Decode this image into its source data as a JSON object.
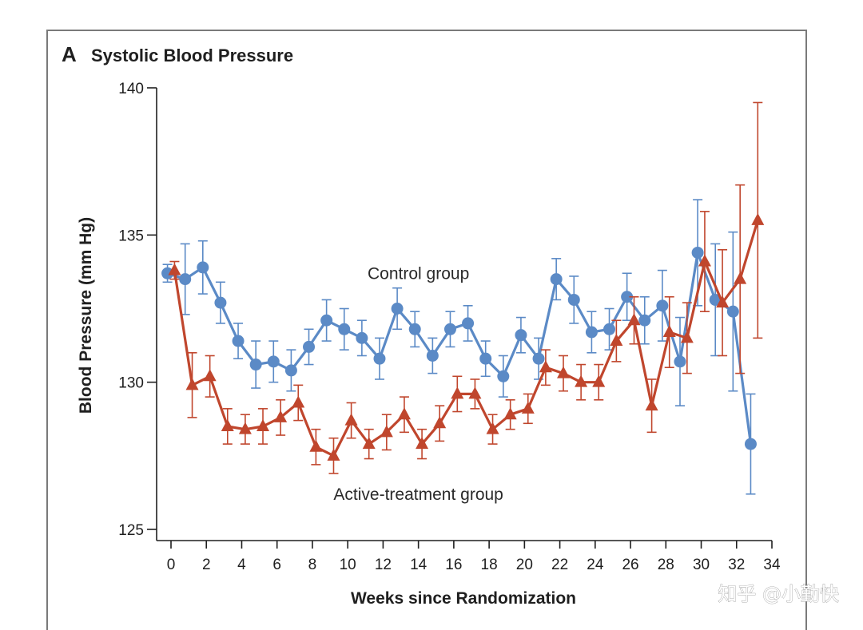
{
  "panel_letter": "A",
  "watermark": "知乎 @小勤快",
  "colors": {
    "control": "#5b8ac6",
    "active": "#c0462d",
    "axis": "#1f1f1f",
    "frame": "#7a7a7a"
  },
  "chart_data": {
    "type": "line",
    "title": "Systolic Blood Pressure",
    "xlabel": "Weeks since Randomization",
    "ylabel": "Blood Pressure (mm Hg)",
    "xlim": [
      0,
      34
    ],
    "ylim": [
      125,
      140
    ],
    "xticks": [
      0,
      2,
      4,
      6,
      8,
      10,
      12,
      14,
      16,
      18,
      20,
      22,
      24,
      26,
      28,
      30,
      32,
      34
    ],
    "yticks": [
      125,
      130,
      135,
      140
    ],
    "grid": false,
    "legend": "none",
    "series": [
      {
        "name": "Control group",
        "key": "control",
        "marker": "circle",
        "x": [
          -0.2,
          0.8,
          1.8,
          2.8,
          3.8,
          4.8,
          5.8,
          6.8,
          7.8,
          8.8,
          9.8,
          10.8,
          11.8,
          12.8,
          13.8,
          14.8,
          15.8,
          16.8,
          17.8,
          18.8,
          19.8,
          20.8,
          21.8,
          22.8,
          23.8,
          24.8,
          25.8,
          26.8,
          27.8,
          28.8,
          29.8,
          30.8,
          31.8,
          32.8
        ],
        "y": [
          133.7,
          133.5,
          133.9,
          132.7,
          131.4,
          130.6,
          130.7,
          130.4,
          131.2,
          132.1,
          131.8,
          131.5,
          130.8,
          132.5,
          131.8,
          130.9,
          131.8,
          132.0,
          130.8,
          130.2,
          131.6,
          130.8,
          133.5,
          132.8,
          131.7,
          131.8,
          132.9,
          132.1,
          132.6,
          130.7,
          134.4,
          132.8,
          132.4,
          127.9
        ],
        "error": [
          0.3,
          1.2,
          0.9,
          0.7,
          0.6,
          0.8,
          0.7,
          0.7,
          0.6,
          0.7,
          0.7,
          0.6,
          0.7,
          0.7,
          0.6,
          0.6,
          0.6,
          0.6,
          0.6,
          0.7,
          0.6,
          0.7,
          0.7,
          0.8,
          0.7,
          0.7,
          0.8,
          0.8,
          1.2,
          1.5,
          1.8,
          1.9,
          2.7,
          1.7
        ]
      },
      {
        "name": "Active-treatment group",
        "key": "active",
        "marker": "triangle",
        "x": [
          0.2,
          1.2,
          2.2,
          3.2,
          4.2,
          5.2,
          6.2,
          7.2,
          8.2,
          9.2,
          10.2,
          11.2,
          12.2,
          13.2,
          14.2,
          15.2,
          16.2,
          17.2,
          18.2,
          19.2,
          20.2,
          21.2,
          22.2,
          23.2,
          24.2,
          25.2,
          26.2,
          27.2,
          28.2,
          29.2,
          30.2,
          31.2,
          32.2,
          33.2
        ],
        "y": [
          133.8,
          129.9,
          130.2,
          128.5,
          128.4,
          128.5,
          128.8,
          129.3,
          127.8,
          127.5,
          128.7,
          127.9,
          128.3,
          128.9,
          127.9,
          128.6,
          129.6,
          129.6,
          128.4,
          128.9,
          129.1,
          130.5,
          130.3,
          130.0,
          130.0,
          131.4,
          132.1,
          129.2,
          131.7,
          131.5,
          134.1,
          132.7,
          133.5,
          135.5
        ],
        "error": [
          0.3,
          1.1,
          0.7,
          0.6,
          0.5,
          0.6,
          0.6,
          0.6,
          0.6,
          0.6,
          0.6,
          0.5,
          0.6,
          0.6,
          0.5,
          0.6,
          0.6,
          0.5,
          0.5,
          0.5,
          0.5,
          0.6,
          0.6,
          0.6,
          0.6,
          0.7,
          0.8,
          0.9,
          1.2,
          1.2,
          1.7,
          1.8,
          3.2,
          4.0
        ]
      }
    ],
    "annotations": [
      {
        "text": "Control group",
        "x": 14.0,
        "y": 133.7
      },
      {
        "text": "Active-treatment group",
        "x": 14.0,
        "y": 126.2
      }
    ]
  }
}
